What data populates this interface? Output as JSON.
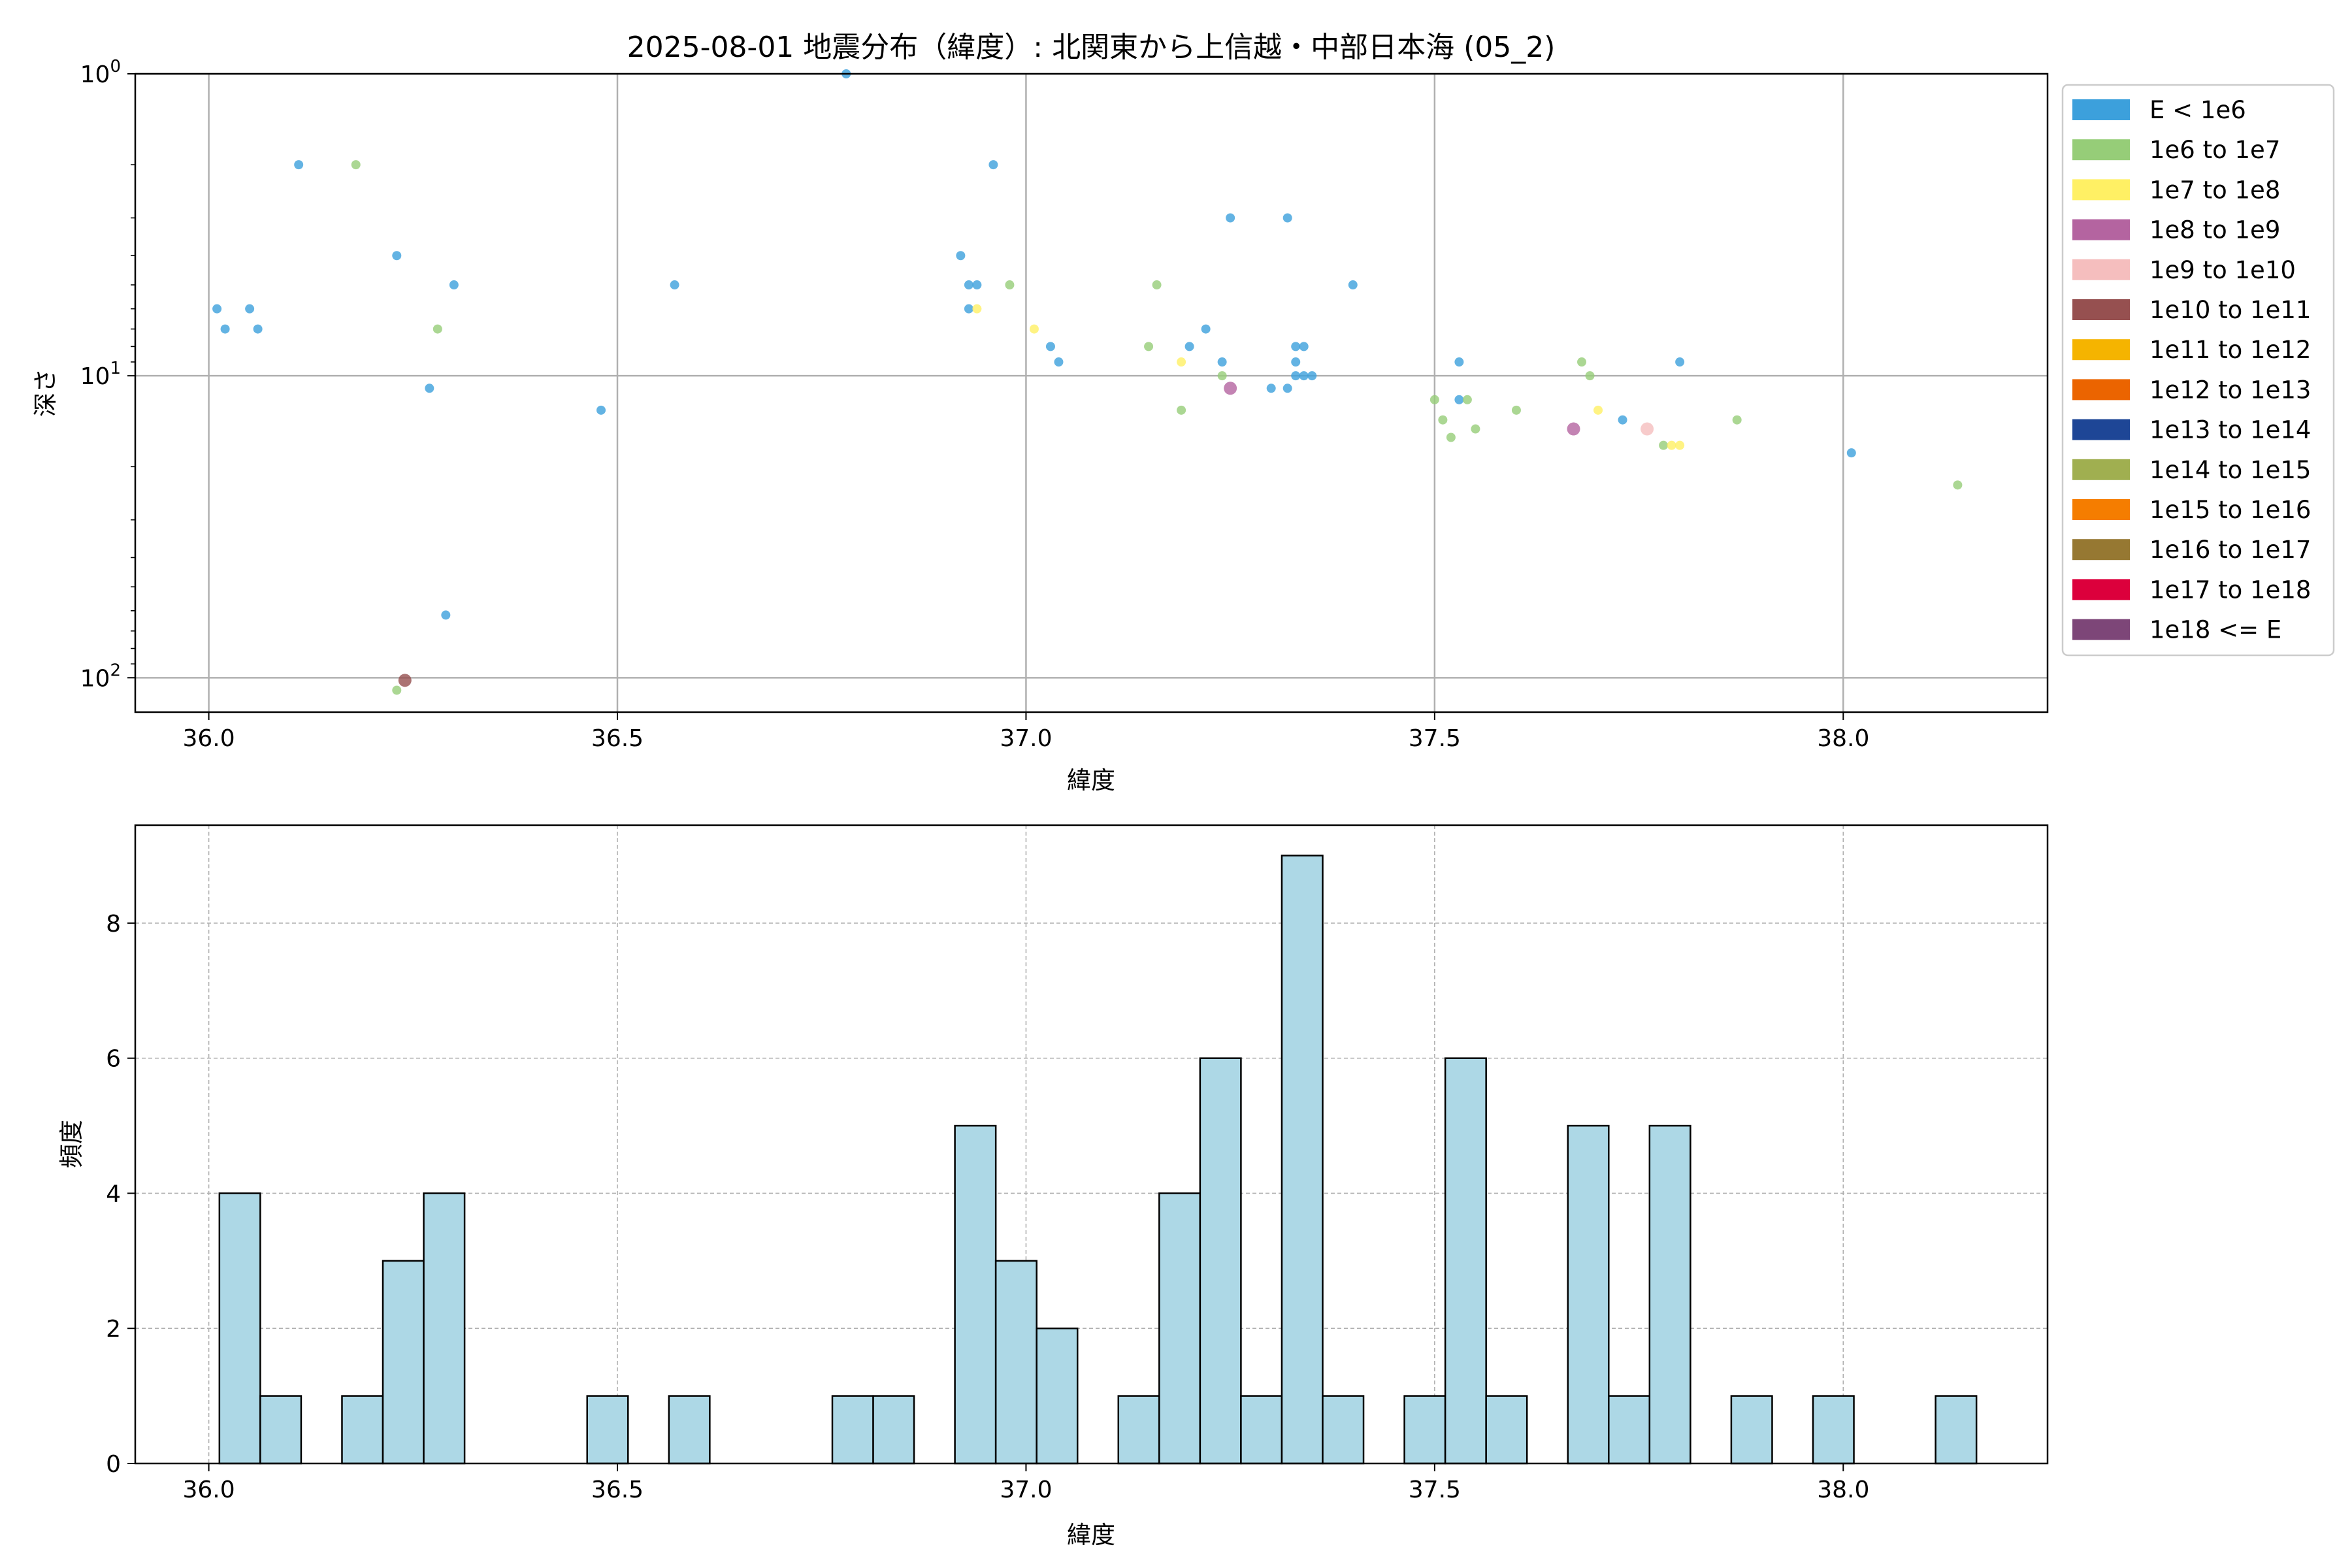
{
  "chart_data": [
    {
      "type": "scatter",
      "title": "2025-08-01 地震分布（緯度）: 北関東から上信越・中部日本海 (05_2)",
      "xlabel": "緯度",
      "ylabel": "深さ",
      "xlim": [
        35.91,
        38.25
      ],
      "ylim": [
        1,
        130
      ],
      "yscale": "log",
      "yinverted": true,
      "xticks": [
        "36.0",
        "36.5",
        "37.0",
        "37.5",
        "38.0"
      ],
      "xtick_values": [
        36.0,
        36.5,
        37.0,
        37.5,
        38.0
      ],
      "yticks": [
        {
          "base": "10",
          "exp": "0",
          "value": 1
        },
        {
          "base": "10",
          "exp": "1",
          "value": 10
        },
        {
          "base": "10",
          "exp": "2",
          "value": 100
        }
      ],
      "grid": true,
      "legend_placement": "outside-right",
      "legend": [
        {
          "label": "E < 1e6",
          "color": "#3ca0dc"
        },
        {
          "label": "1e6 to 1e7",
          "color": "#96cd78"
        },
        {
          "label": "1e7 to 1e8",
          "color": "#fff064"
        },
        {
          "label": "1e8 to 1e9",
          "color": "#b464a0"
        },
        {
          "label": "1e9 to 1e10",
          "color": "#f5bebe"
        },
        {
          "label": "1e10 to 1e11",
          "color": "#965050"
        },
        {
          "label": "1e11 to 1e12",
          "color": "#f5b400"
        },
        {
          "label": "1e12 to 1e13",
          "color": "#eb6400"
        },
        {
          "label": "1e13 to 1e14",
          "color": "#1e4696"
        },
        {
          "label": "1e14 to 1e15",
          "color": "#a0af50"
        },
        {
          "label": "1e15 to 1e16",
          "color": "#f57d00"
        },
        {
          "label": "1e16 to 1e17",
          "color": "#967832"
        },
        {
          "label": "1e17 to 1e18",
          "color": "#dc003c"
        },
        {
          "label": "1e18 <= E",
          "color": "#7d4678"
        }
      ],
      "points": [
        {
          "x": 36.01,
          "y": 6,
          "c": 0
        },
        {
          "x": 36.02,
          "y": 7,
          "c": 0
        },
        {
          "x": 36.05,
          "y": 6,
          "c": 0
        },
        {
          "x": 36.06,
          "y": 7,
          "c": 0
        },
        {
          "x": 36.11,
          "y": 2,
          "c": 0
        },
        {
          "x": 36.18,
          "y": 2,
          "c": 1
        },
        {
          "x": 36.23,
          "y": 4,
          "c": 0
        },
        {
          "x": 36.23,
          "y": 110,
          "c": 1
        },
        {
          "x": 36.24,
          "y": 102,
          "c": 5
        },
        {
          "x": 36.27,
          "y": 11,
          "c": 0
        },
        {
          "x": 36.28,
          "y": 7,
          "c": 1
        },
        {
          "x": 36.29,
          "y": 62,
          "c": 0
        },
        {
          "x": 36.3,
          "y": 5,
          "c": 0
        },
        {
          "x": 36.48,
          "y": 13,
          "c": 0
        },
        {
          "x": 36.57,
          "y": 5,
          "c": 0
        },
        {
          "x": 36.78,
          "y": 1,
          "c": 0
        },
        {
          "x": 36.92,
          "y": 4,
          "c": 0
        },
        {
          "x": 36.93,
          "y": 5,
          "c": 0
        },
        {
          "x": 36.93,
          "y": 6,
          "c": 0
        },
        {
          "x": 36.94,
          "y": 5,
          "c": 0
        },
        {
          "x": 36.94,
          "y": 6,
          "c": 2
        },
        {
          "x": 36.96,
          "y": 2,
          "c": 0
        },
        {
          "x": 36.98,
          "y": 5,
          "c": 1
        },
        {
          "x": 37.01,
          "y": 7,
          "c": 2
        },
        {
          "x": 37.03,
          "y": 8,
          "c": 0
        },
        {
          "x": 37.04,
          "y": 9,
          "c": 0
        },
        {
          "x": 37.15,
          "y": 8,
          "c": 1
        },
        {
          "x": 37.16,
          "y": 5,
          "c": 1
        },
        {
          "x": 37.19,
          "y": 13,
          "c": 1
        },
        {
          "x": 37.19,
          "y": 9,
          "c": 2
        },
        {
          "x": 37.2,
          "y": 8,
          "c": 0
        },
        {
          "x": 37.22,
          "y": 7,
          "c": 0
        },
        {
          "x": 37.24,
          "y": 9,
          "c": 0
        },
        {
          "x": 37.24,
          "y": 10,
          "c": 1
        },
        {
          "x": 37.25,
          "y": 11,
          "c": 3
        },
        {
          "x": 37.25,
          "y": 3,
          "c": 0
        },
        {
          "x": 37.3,
          "y": 11,
          "c": 0
        },
        {
          "x": 37.32,
          "y": 11,
          "c": 0
        },
        {
          "x": 37.32,
          "y": 3,
          "c": 0
        },
        {
          "x": 37.33,
          "y": 8,
          "c": 0
        },
        {
          "x": 37.33,
          "y": 10,
          "c": 0
        },
        {
          "x": 37.33,
          "y": 9,
          "c": 0
        },
        {
          "x": 37.34,
          "y": 8,
          "c": 0
        },
        {
          "x": 37.34,
          "y": 10,
          "c": 0
        },
        {
          "x": 37.35,
          "y": 10,
          "c": 0
        },
        {
          "x": 37.4,
          "y": 5,
          "c": 0
        },
        {
          "x": 37.5,
          "y": 12,
          "c": 1
        },
        {
          "x": 37.51,
          "y": 14,
          "c": 1
        },
        {
          "x": 37.52,
          "y": 16,
          "c": 1
        },
        {
          "x": 37.53,
          "y": 9,
          "c": 0
        },
        {
          "x": 37.53,
          "y": 12,
          "c": 0
        },
        {
          "x": 37.54,
          "y": 12,
          "c": 1
        },
        {
          "x": 37.55,
          "y": 15,
          "c": 1
        },
        {
          "x": 37.6,
          "y": 13,
          "c": 1
        },
        {
          "x": 37.67,
          "y": 15,
          "c": 3
        },
        {
          "x": 37.68,
          "y": 9,
          "c": 1
        },
        {
          "x": 37.69,
          "y": 10,
          "c": 1
        },
        {
          "x": 37.7,
          "y": 13,
          "c": 2
        },
        {
          "x": 37.73,
          "y": 14,
          "c": 0
        },
        {
          "x": 37.76,
          "y": 15,
          "c": 4
        },
        {
          "x": 37.78,
          "y": 17,
          "c": 1
        },
        {
          "x": 37.79,
          "y": 17,
          "c": 2
        },
        {
          "x": 37.8,
          "y": 17,
          "c": 2
        },
        {
          "x": 37.8,
          "y": 9,
          "c": 0
        },
        {
          "x": 37.87,
          "y": 14,
          "c": 1
        },
        {
          "x": 38.01,
          "y": 18,
          "c": 0
        },
        {
          "x": 38.14,
          "y": 23,
          "c": 1
        }
      ]
    },
    {
      "type": "bar",
      "xlabel": "緯度",
      "ylabel": "頻度",
      "xlim": [
        35.91,
        38.25
      ],
      "ylim": [
        0,
        9.45
      ],
      "xticks": [
        "36.0",
        "36.5",
        "37.0",
        "37.5",
        "38.0"
      ],
      "xtick_values": [
        36.0,
        36.5,
        37.0,
        37.5,
        38.0
      ],
      "yticks": [
        "0",
        "2",
        "4",
        "6",
        "8"
      ],
      "ytick_values": [
        0,
        2,
        4,
        6,
        8
      ],
      "grid": true,
      "color": "#add8e6",
      "edge_color": "#000000",
      "bin_start": 36.013,
      "bin_width": 0.05,
      "counts": [
        4,
        1,
        0,
        1,
        3,
        4,
        0,
        0,
        0,
        1,
        0,
        1,
        0,
        0,
        0,
        1,
        1,
        0,
        5,
        3,
        2,
        0,
        1,
        4,
        6,
        1,
        9,
        1,
        0,
        1,
        6,
        1,
        0,
        5,
        1,
        5,
        0,
        1,
        0,
        1,
        0,
        0,
        1
      ]
    }
  ]
}
